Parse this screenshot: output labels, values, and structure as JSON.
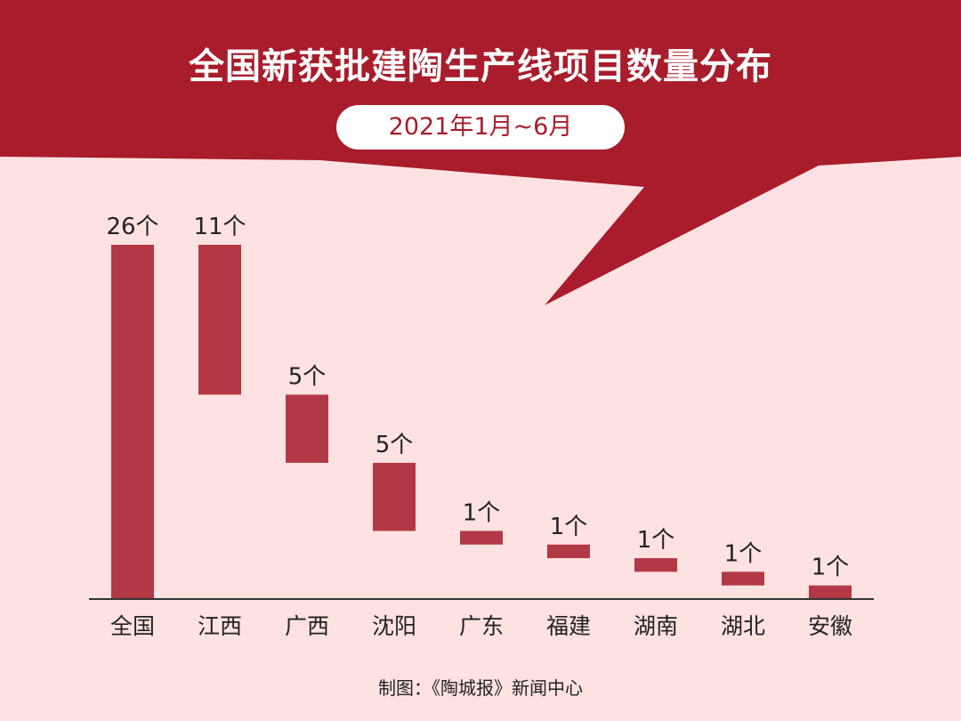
{
  "title": "全国新获批建陶生产线项目数量分布",
  "subtitle": "2021年1月~6月",
  "credit": "制图：《陶城报》新闻中心",
  "colors": {
    "banner": "#a81c2b",
    "background": "#fde2e1",
    "bar": "#b33846",
    "axis": "#333333",
    "text": "#222222"
  },
  "chart_data": {
    "type": "waterfall",
    "unit": "个",
    "ylim": [
      0,
      26
    ],
    "categories": [
      "全国",
      "江西",
      "广西",
      "沈阳",
      "广东",
      "福建",
      "湖南",
      "湖北",
      "安徽"
    ],
    "values": [
      26,
      11,
      5,
      5,
      1,
      1,
      1,
      1,
      1
    ],
    "labels": [
      "26个",
      "11个",
      "5个",
      "5个",
      "1个",
      "1个",
      "1个",
      "1个",
      "1个"
    ],
    "total_category": "全国"
  }
}
